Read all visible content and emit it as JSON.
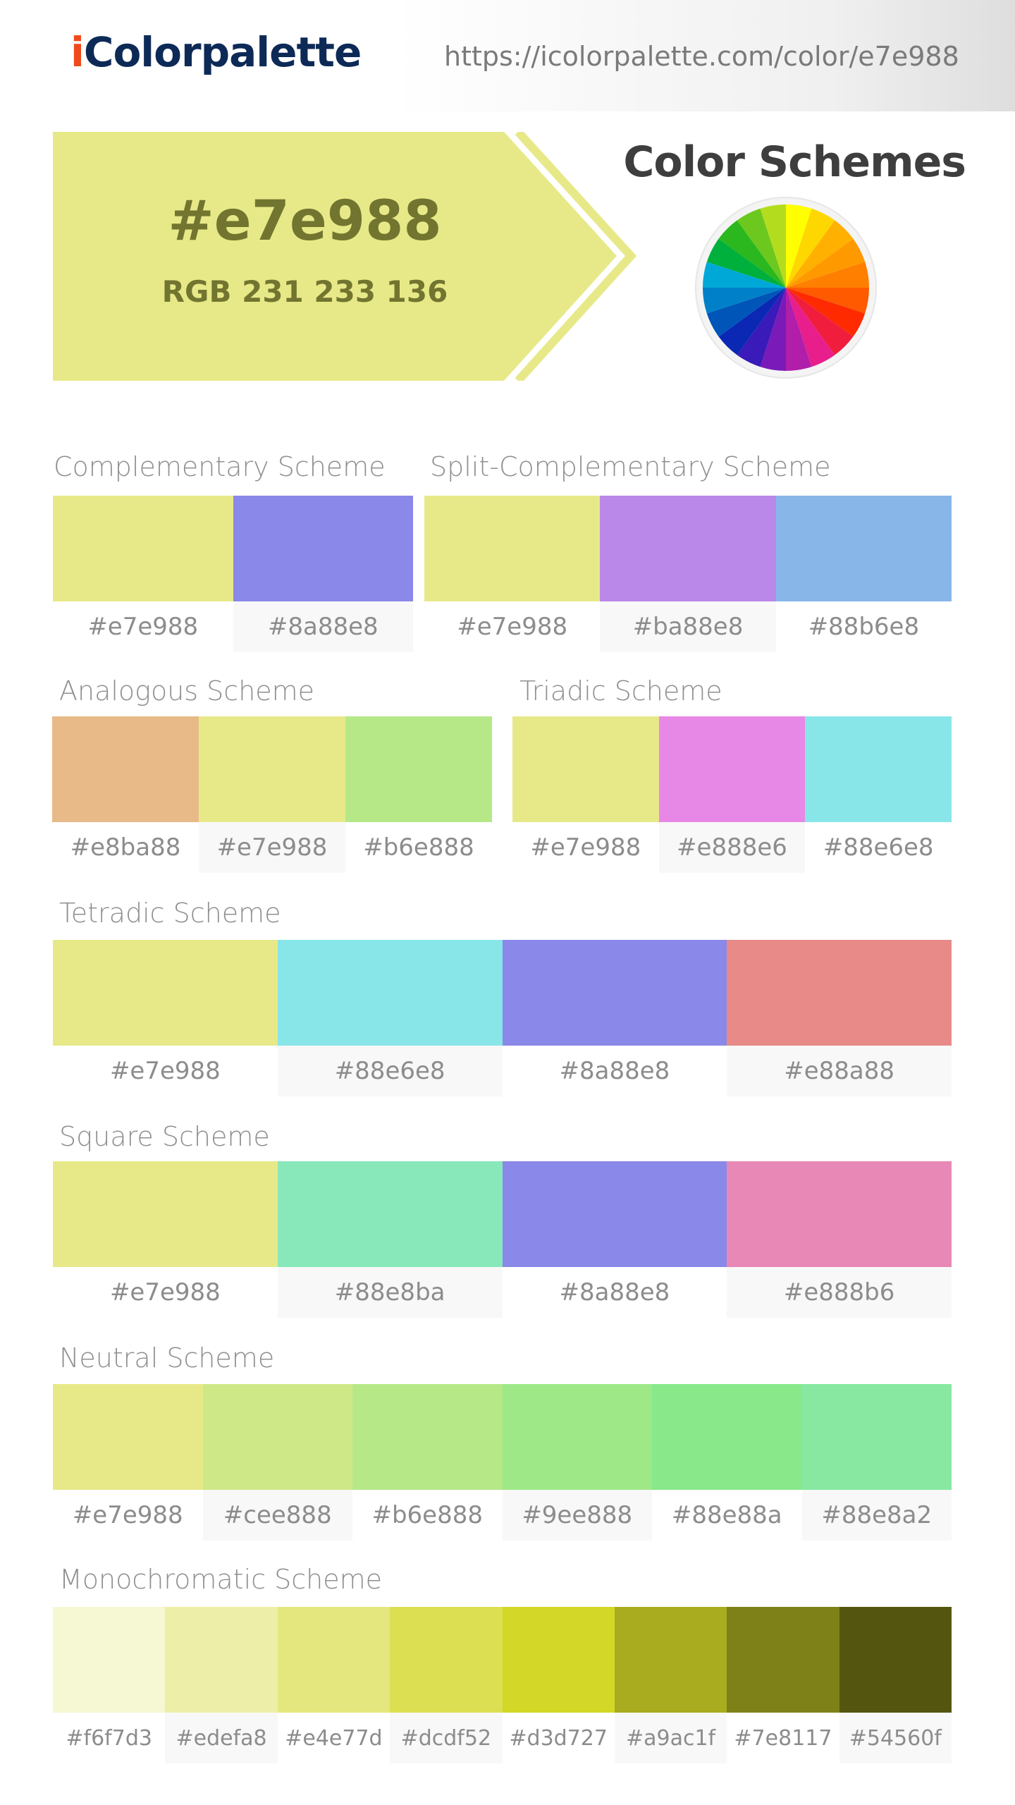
{
  "header": {
    "logo_i": "i",
    "logo_rest": "Colorpalette",
    "url": "https://icolorpalette.com/color/e7e988"
  },
  "hero": {
    "hex": "#e7e988",
    "rgb": "RGB 231 233 136",
    "color": "#e7e988",
    "text_color": "#72752f"
  },
  "color_schemes_title": "Color Schemes",
  "schemes": {
    "complementary": {
      "title": "Complementary Scheme",
      "colors": [
        "#e7e988",
        "#8a88e8"
      ]
    },
    "split_complementary": {
      "title": "Split-Complementary Scheme",
      "colors": [
        "#e7e988",
        "#ba88e8",
        "#88b6e8"
      ]
    },
    "analogous": {
      "title": "Analogous Scheme",
      "colors": [
        "#e8ba88",
        "#e7e988",
        "#b6e888"
      ]
    },
    "triadic": {
      "title": "Triadic Scheme",
      "colors": [
        "#e7e988",
        "#e888e6",
        "#88e6e8"
      ]
    },
    "tetradic": {
      "title": "Tetradic Scheme",
      "colors": [
        "#e7e988",
        "#88e6e8",
        "#8a88e8",
        "#e88a88"
      ]
    },
    "square": {
      "title": "Square Scheme",
      "colors": [
        "#e7e988",
        "#88e8ba",
        "#8a88e8",
        "#e888b6"
      ]
    },
    "neutral": {
      "title": "Neutral Scheme",
      "colors": [
        "#e7e988",
        "#cee888",
        "#b6e888",
        "#9ee888",
        "#88e88a",
        "#88e8a2"
      ]
    },
    "monochromatic": {
      "title": "Monochromatic Scheme",
      "colors": [
        "#f6f7d3",
        "#edefa8",
        "#e4e77d",
        "#dcdf52",
        "#d3d727",
        "#a9ac1f",
        "#7e8117",
        "#54560f"
      ]
    }
  },
  "wheel_colors": [
    "#ffff00",
    "#ffd700",
    "#ffb000",
    "#ff9900",
    "#ff7f00",
    "#ff5a00",
    "#ff2a00",
    "#f01e3c",
    "#e81e8c",
    "#b01eaa",
    "#7a1ab8",
    "#3a1ab8",
    "#0a28b4",
    "#0055b8",
    "#0080c8",
    "#00a8d8",
    "#00b03c",
    "#2ab81e",
    "#6cc81e",
    "#b4dc1e"
  ]
}
